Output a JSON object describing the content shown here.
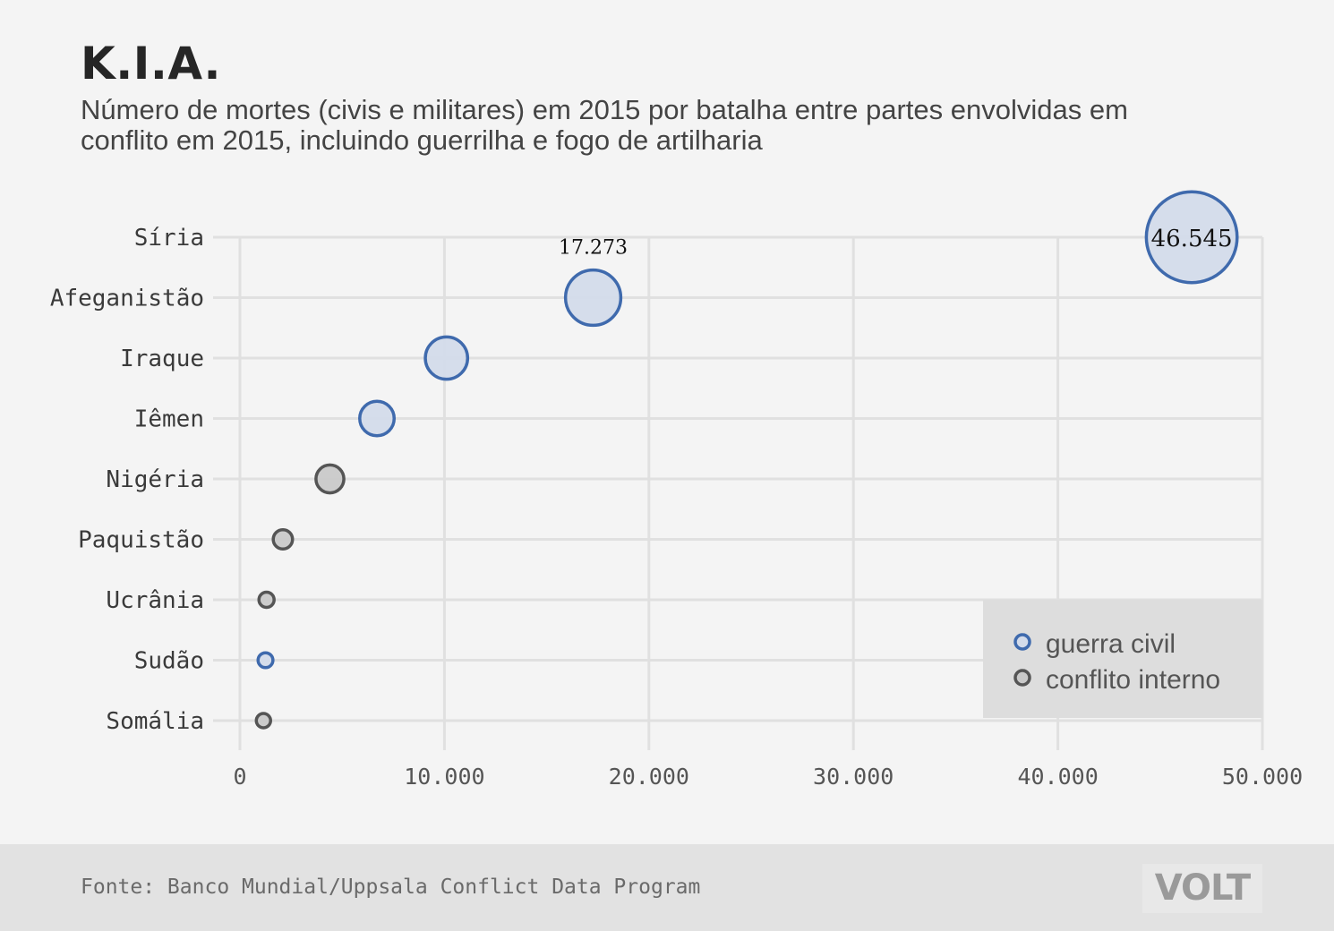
{
  "title": "K.I.A.",
  "subtitle": "Número de mortes (civis e militares) em 2015 por batalha entre partes envolvidas em conflito em 2015, incluindo guerrilha e fogo de artilharia",
  "source": "Fonte: Banco Mundial/Uppsala Conflict Data Program",
  "logo": "VOLT",
  "colors": {
    "guerra_civil_stroke": "#3f6aad",
    "guerra_civil_fill": "#d3dbea",
    "conflito_interno_stroke": "#555555",
    "conflito_interno_fill": "#c9c9c9",
    "grid": "#e0e0e0",
    "legend_bg": "#dddddd"
  },
  "chart_data": {
    "type": "scatter",
    "title": "K.I.A.",
    "xlim": [
      0,
      50000
    ],
    "xticks": [
      0,
      10000,
      20000,
      30000,
      40000,
      50000
    ],
    "xtick_labels": [
      "0",
      "10.000",
      "20.000",
      "30.000",
      "40.000",
      "50.000"
    ],
    "grid": true,
    "legend_position": "bottom-right",
    "legend": [
      {
        "key": "guerra_civil",
        "label": "guerra civil"
      },
      {
        "key": "conflito_interno",
        "label": "conflito interno"
      }
    ],
    "points": [
      {
        "country": "Síria",
        "value": 46545,
        "type": "guerra_civil",
        "label": "46.545"
      },
      {
        "country": "Afeganistão",
        "value": 17273,
        "type": "guerra_civil",
        "label": "17.273"
      },
      {
        "country": "Iraque",
        "value": 10100,
        "type": "guerra_civil",
        "label": ""
      },
      {
        "country": "Iêmen",
        "value": 6700,
        "type": "guerra_civil",
        "label": ""
      },
      {
        "country": "Nigéria",
        "value": 4400,
        "type": "conflito_interno",
        "label": ""
      },
      {
        "country": "Paquistão",
        "value": 2100,
        "type": "conflito_interno",
        "label": ""
      },
      {
        "country": "Ucrânia",
        "value": 1300,
        "type": "conflito_interno",
        "label": ""
      },
      {
        "country": "Sudão",
        "value": 1250,
        "type": "guerra_civil",
        "label": ""
      },
      {
        "country": "Somália",
        "value": 1150,
        "type": "conflito_interno",
        "label": ""
      }
    ]
  }
}
